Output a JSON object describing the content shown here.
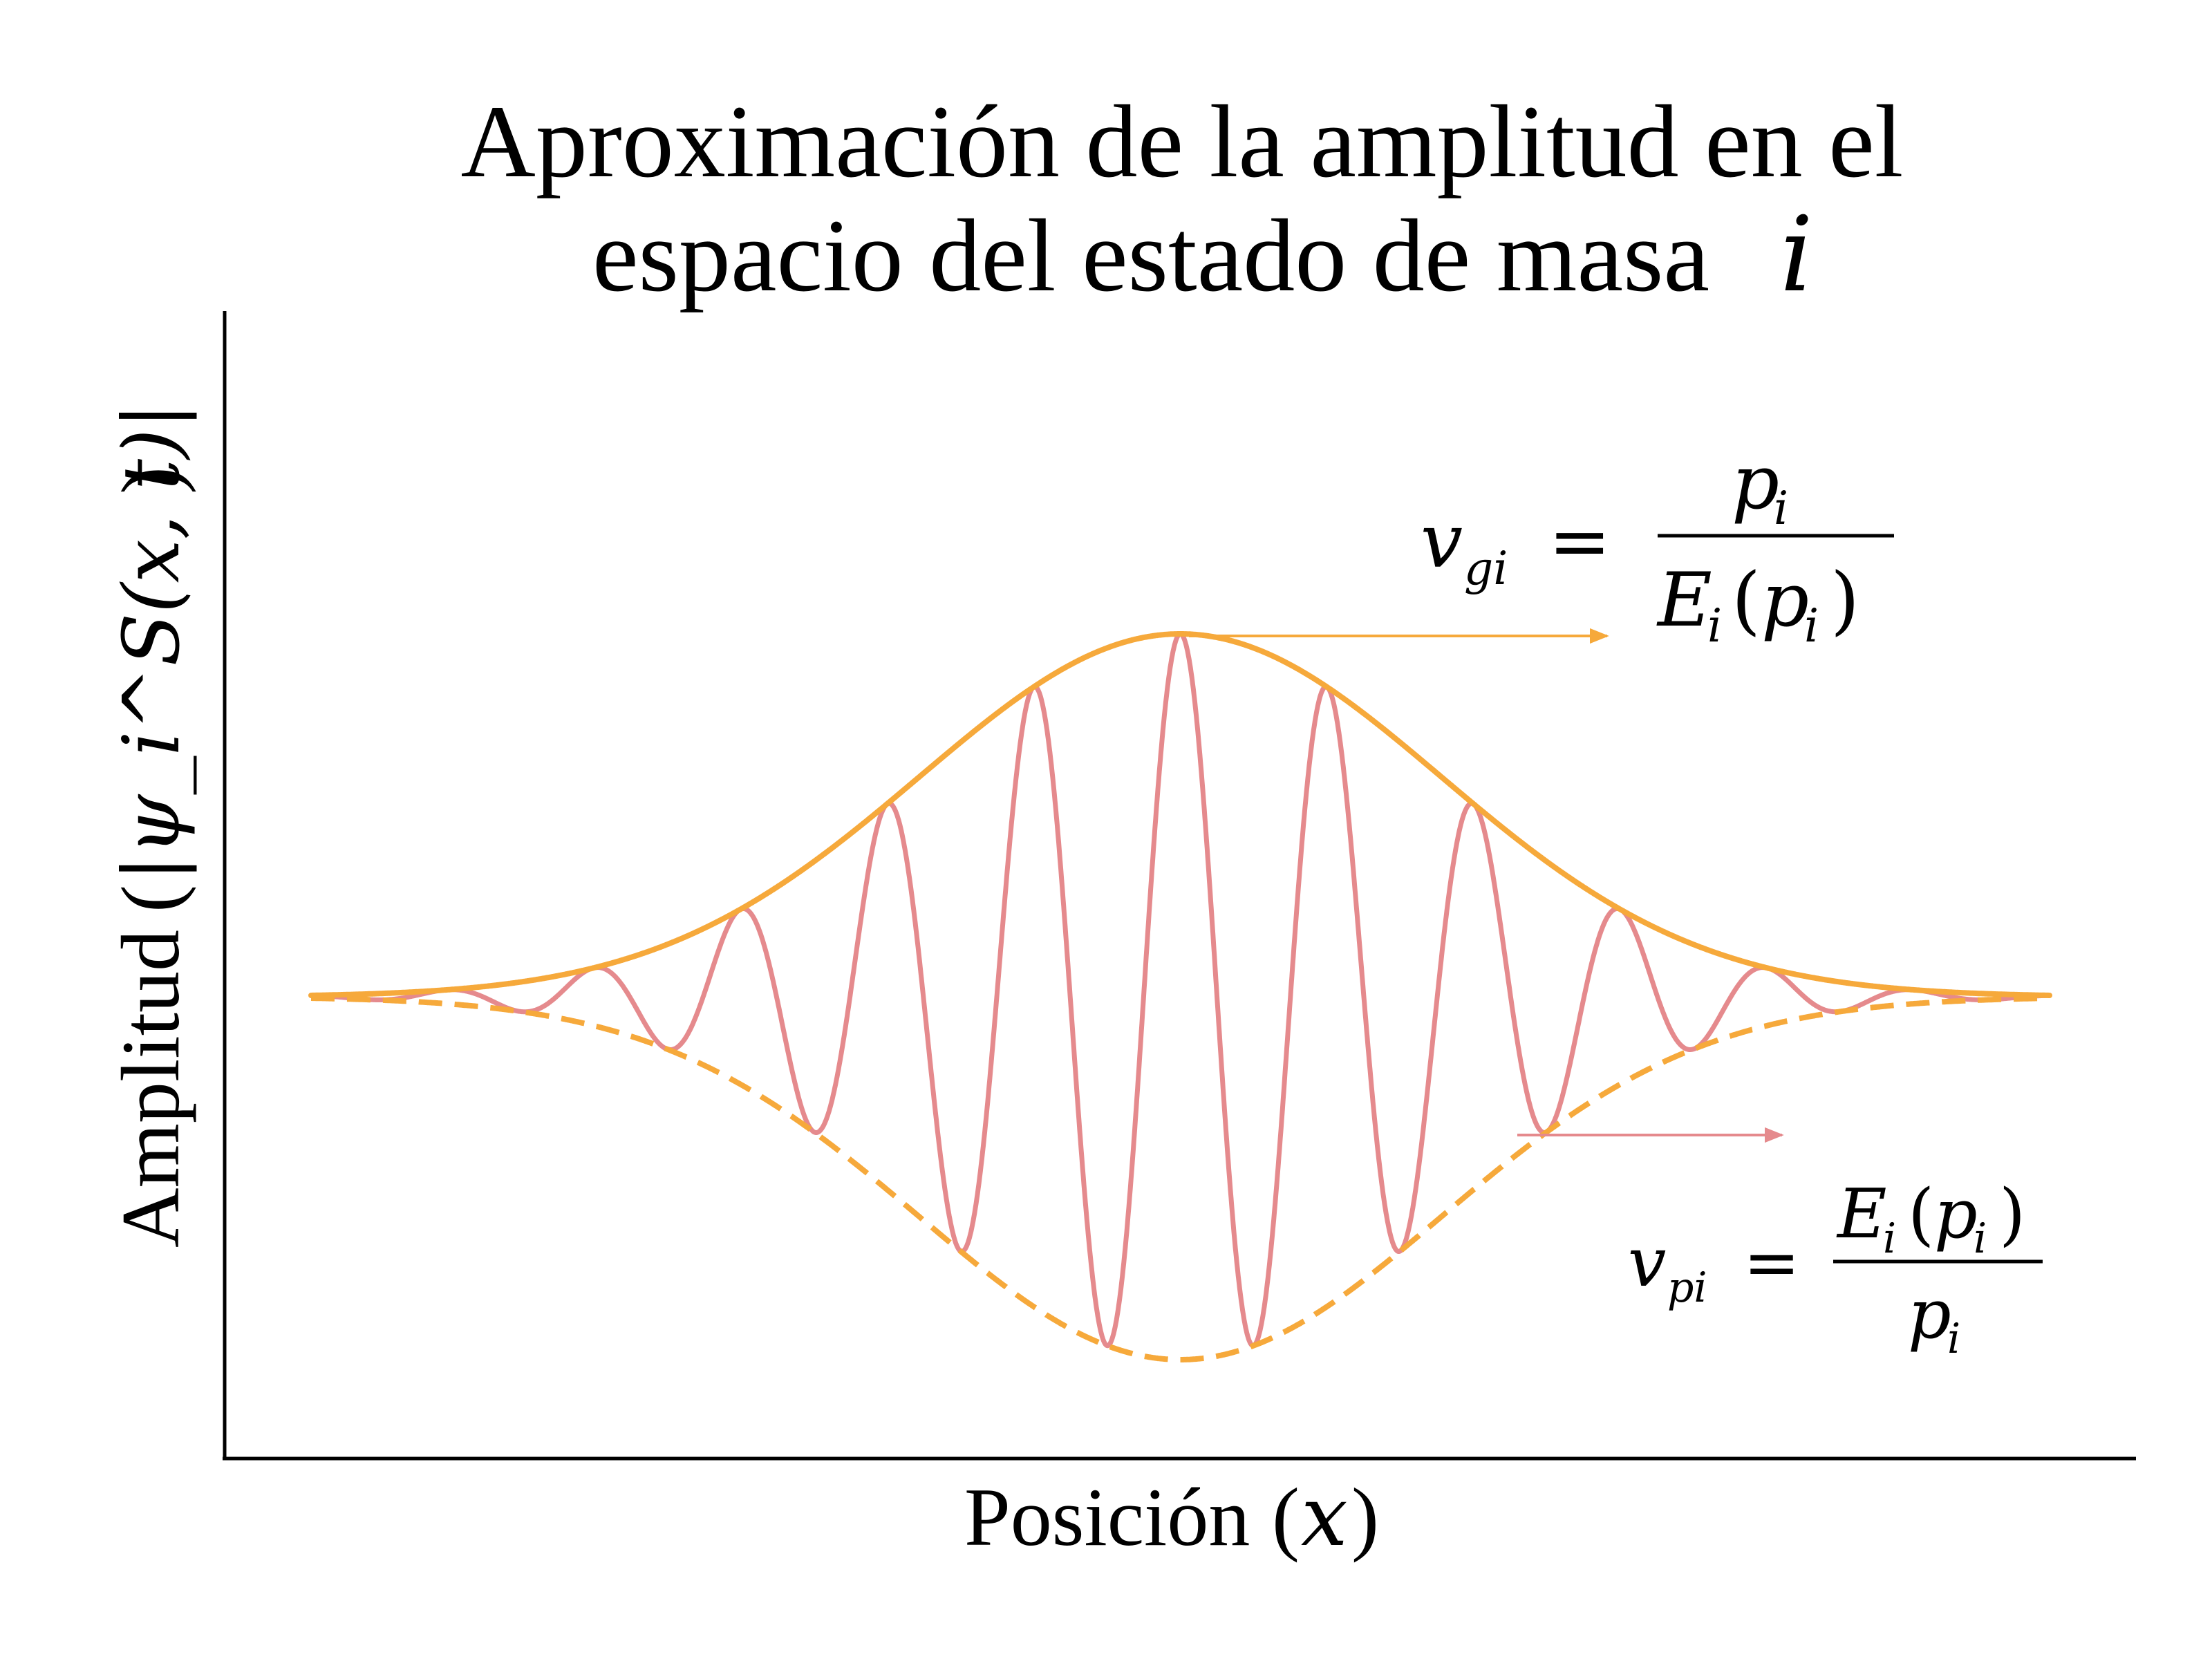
{
  "chart_data": {
    "type": "line",
    "title_lines": [
      "Aproximación de la amplitud en el",
      "espacio del estado de masa"
    ],
    "title_math_symbol": "i",
    "xlabel": "Posición",
    "xlabel_math": "x",
    "ylabel": "Amplitud",
    "ylabel_math": "|ψ_i^S(x, t)|",
    "xlim": [
      -6,
      6
    ],
    "ylim": [
      -1.25,
      1.25
    ],
    "ticks": "none",
    "grid": false,
    "envelope": {
      "function": "gaussian",
      "center": 0,
      "sigma": 1.8,
      "peak": 1.0
    },
    "carrier_wave_number": 6.2,
    "series": [
      {
        "color": "#f6a93b",
        "style": "solid",
        "values_shown": "upper envelope"
      },
      {
        "color": "#f6a93b",
        "style": "dashed",
        "values_shown": "lower envelope"
      },
      {
        "color": "#e58a8d",
        "style": "solid",
        "values_shown": "oscillation"
      }
    ],
    "annotations": [
      {
        "lhs_symbol": "v",
        "lhs_subscript": "gi",
        "equals": "=",
        "numerator_symbol": "p",
        "numerator_subscript": "i",
        "denominator_symbol": "E",
        "denominator_subscript": "i",
        "denominator_argument_symbol": "p",
        "denominator_argument_subscript": "i",
        "arrow_color": "#f6a93b"
      },
      {
        "lhs_symbol": "v",
        "lhs_subscript": "pi",
        "equals": "=",
        "numerator_symbol": "E",
        "numerator_subscript": "i",
        "numerator_argument_symbol": "p",
        "numerator_argument_subscript": "i",
        "denominator_symbol": "p",
        "denominator_subscript": "i",
        "arrow_color": "#e58a8d"
      }
    ]
  }
}
